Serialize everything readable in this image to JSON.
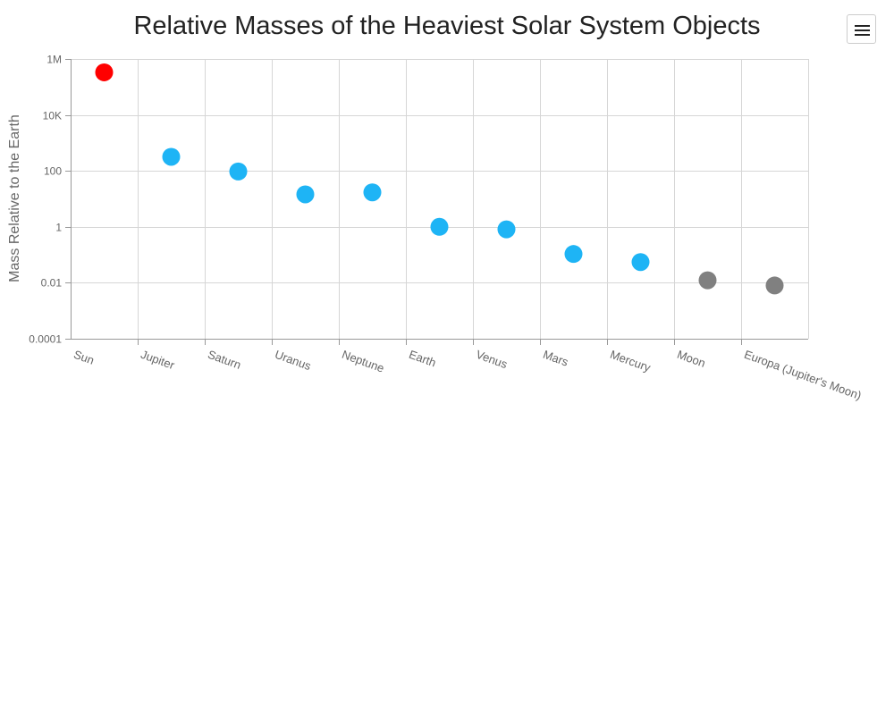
{
  "chart_data": {
    "type": "scatter",
    "title": "Relative Masses of the Heaviest Solar System Objects",
    "xlabel": "",
    "ylabel": "Mass Relative to the Earth",
    "y_scale": "log",
    "ylim": [
      0.0001,
      1000000
    ],
    "y_ticks": [
      {
        "value": 1000000,
        "label": "1M"
      },
      {
        "value": 10000,
        "label": "10K"
      },
      {
        "value": 100,
        "label": "100"
      },
      {
        "value": 1,
        "label": "1"
      },
      {
        "value": 0.01,
        "label": "0.01"
      },
      {
        "value": 0.0001,
        "label": "0.0001"
      }
    ],
    "grid": true,
    "categories": [
      "Sun",
      "Jupiter",
      "Saturn",
      "Uranus",
      "Neptune",
      "Earth",
      "Venus",
      "Mars",
      "Mercury",
      "Moon",
      "Europa (Jupiter's Moon)"
    ],
    "values": [
      333000,
      317.8,
      95.2,
      14.5,
      17.1,
      1,
      0.815,
      0.107,
      0.055,
      0.0123,
      0.008
    ],
    "colors": [
      "#ff0000",
      "#1eb4f5",
      "#1eb4f5",
      "#1eb4f5",
      "#1eb4f5",
      "#1eb4f5",
      "#1eb4f5",
      "#1eb4f5",
      "#1eb4f5",
      "#808080",
      "#808080"
    ]
  },
  "menu": {
    "icon": "hamburger-menu-icon"
  }
}
